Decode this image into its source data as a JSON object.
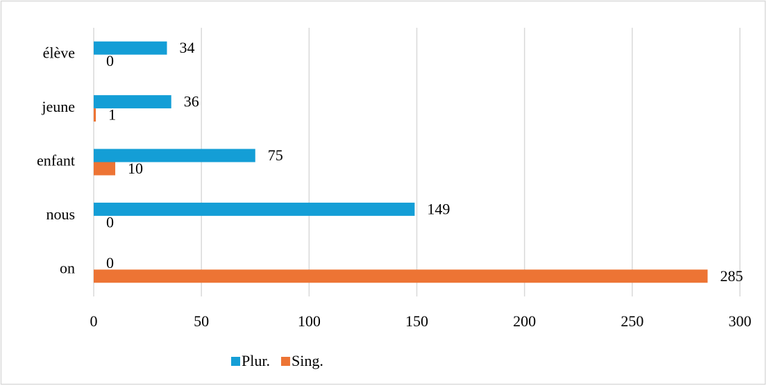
{
  "chart_data": {
    "type": "bar",
    "orientation": "horizontal",
    "categories": [
      "on",
      "nous",
      "enfant",
      "jeune",
      "élève"
    ],
    "series": [
      {
        "name": "Plur.",
        "color": "#149ed6",
        "values": [
          0,
          149,
          75,
          36,
          34
        ]
      },
      {
        "name": "Sing.",
        "color": "#ed7434",
        "values": [
          285,
          0,
          10,
          1,
          0
        ]
      }
    ],
    "xlim": [
      0,
      300
    ],
    "xticks": [
      0,
      50,
      100,
      150,
      200,
      250,
      300
    ],
    "grid": true,
    "legend": "bottom"
  }
}
